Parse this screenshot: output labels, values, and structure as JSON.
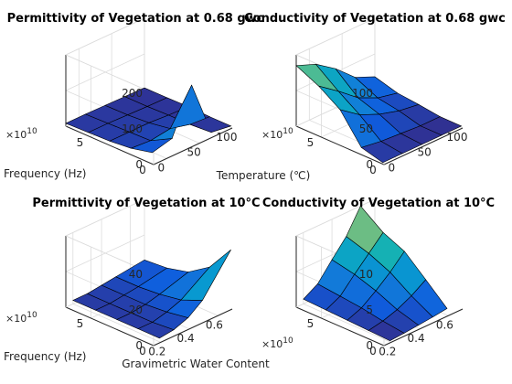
{
  "chart_data": [
    {
      "type": "surface",
      "title": "Permittivity of Vegetation at 0.68 gwc",
      "xlabel": "Temperature (℃)",
      "ylabel": "Frequency (Hz)",
      "zlabel": "",
      "xlim": [
        -20,
        100
      ],
      "ylim": [
        0,
        70000000000.0
      ],
      "zlim": [
        0,
        200
      ],
      "xticks": [
        "0",
        "50",
        "100"
      ],
      "yticks": [
        "0",
        "5"
      ],
      "zticks": [
        "0",
        "100",
        "200"
      ],
      "ytick_exponent": "×10",
      "ytick_exponent_power": "10",
      "x": [
        -20,
        10,
        40,
        70,
        100
      ],
      "y": [
        1000000000.0,
        18000000000.0,
        35000000000.0,
        52000000000.0,
        70000000000.0
      ],
      "z": [
        [
          32,
          46,
          170,
          12,
          4
        ],
        [
          18,
          14,
          22,
          8,
          4
        ],
        [
          12,
          12,
          12,
          8,
          6
        ],
        [
          10,
          10,
          8,
          6,
          5
        ],
        [
          8,
          8,
          7,
          6,
          5
        ]
      ]
    },
    {
      "type": "surface",
      "title": "Conductivity of Vegetation at 0.68 gwc",
      "xlabel": "",
      "ylabel": "",
      "zlabel": "",
      "xlim": [
        -20,
        100
      ],
      "ylim": [
        0,
        70000000000.0
      ],
      "zlim": [
        0,
        100
      ],
      "xticks": [
        "0",
        "50",
        "100"
      ],
      "yticks": [
        "0",
        "5"
      ],
      "zticks": [
        "0",
        "50",
        "100"
      ],
      "ytick_exponent": "×10",
      "ytick_exponent_power": "10",
      "x": [
        -20,
        10,
        40,
        70,
        100
      ],
      "y": [
        1000000000.0,
        18000000000.0,
        35000000000.0,
        52000000000.0,
        70000000000.0
      ],
      "z": [
        [
          2,
          2,
          2,
          2,
          2
        ],
        [
          10,
          6,
          4,
          2,
          2
        ],
        [
          50,
          30,
          18,
          10,
          6
        ],
        [
          70,
          50,
          28,
          15,
          9
        ],
        [
          85,
          74,
          55,
          30,
          18
        ]
      ]
    },
    {
      "type": "surface",
      "title": "Permittivity of Vegetation at 10°C",
      "xlabel": "Gravimetric Water Content",
      "ylabel": "Frequency (Hz)",
      "zlabel": "",
      "xlim": [
        0.15,
        0.7
      ],
      "ylim": [
        0,
        70000000000.0
      ],
      "zlim": [
        0,
        40
      ],
      "xticks": [
        "0.2",
        "0.4",
        "0.6"
      ],
      "yticks": [
        "0",
        "5"
      ],
      "zticks": [
        "0",
        "20",
        "40"
      ],
      "ytick_exponent": "×10",
      "ytick_exponent_power": "10",
      "x": [
        0.2,
        0.3,
        0.4,
        0.5,
        0.7
      ],
      "y": [
        1000000000.0,
        18000000000.0,
        35000000000.0,
        52000000000.0,
        70000000000.0
      ],
      "z": [
        [
          2,
          3,
          6,
          12,
          33
        ],
        [
          2,
          2,
          4,
          7,
          18
        ],
        [
          2,
          2,
          3,
          5,
          10
        ],
        [
          2,
          2,
          3,
          4,
          7
        ],
        [
          2,
          2,
          3,
          4,
          6
        ]
      ]
    },
    {
      "type": "surface",
      "title": "Conductivity of Vegetation at 10°C",
      "xlabel": "",
      "ylabel": "",
      "zlabel": "",
      "xlim": [
        0.15,
        0.7
      ],
      "ylim": [
        0,
        70000000000.0
      ],
      "zlim": [
        0,
        15
      ],
      "xticks": [
        "0.2",
        "0.4",
        "0.6"
      ],
      "yticks": [
        "0",
        "5"
      ],
      "zticks": [
        "0",
        "5",
        "10"
      ],
      "ytick_exponent": "×10",
      "ytick_exponent_power": "10",
      "x": [
        0.2,
        0.3,
        0.4,
        0.5,
        0.6
      ],
      "y": [
        1000000000.0,
        18000000000.0,
        35000000000.0,
        52000000000.0,
        70000000000.0
      ],
      "z": [
        [
          0.2,
          0.4,
          0.7,
          1.0,
          1.4
        ],
        [
          0.4,
          1.0,
          2.0,
          3.5,
          5.5
        ],
        [
          0.6,
          1.8,
          4.0,
          6.5,
          9.5
        ],
        [
          0.8,
          2.3,
          5.5,
          8.5,
          11.5
        ],
        [
          1.0,
          2.8,
          6.5,
          10.0,
          15.0
        ]
      ]
    }
  ]
}
